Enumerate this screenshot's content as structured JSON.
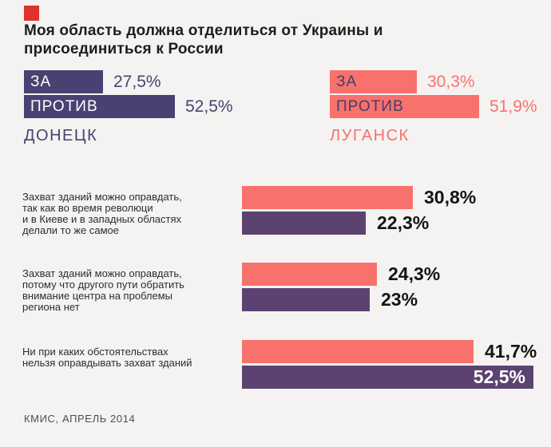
{
  "background": "#f4f3f1",
  "colors": {
    "brand_square": "#e0312d",
    "donetsk_purple": "#4a4173",
    "rows_purple": "#5b4270",
    "coral": "#f8716c",
    "value_black": "#141414",
    "footer_gray": "#4d4d4d"
  },
  "title_lines": [
    "Моя область должна отделиться от Украины и",
    "присоединиться к России"
  ],
  "donetsk": {
    "name": "ДОНЕЦК",
    "bars": [
      {
        "label": "ЗА",
        "value": 27.5,
        "value_label": "27,5%"
      },
      {
        "label": "ПРОТИВ",
        "value": 52.5,
        "value_label": "52,5%"
      }
    ]
  },
  "luhansk": {
    "name": "ЛУГАНСК",
    "bars": [
      {
        "label": "ЗА",
        "value": 30.3,
        "value_label": "30,3%"
      },
      {
        "label": "ПРОТИВ",
        "value": 51.9,
        "value_label": "51,9%"
      }
    ]
  },
  "questions": [
    {
      "lines": [
        "Захват зданий можно оправдать,",
        "так как во время революци",
        "и в Киеве и в западных областях",
        "делали то же самое"
      ],
      "coral": {
        "value": 30.8,
        "label": "30,8%"
      },
      "purple": {
        "value": 22.3,
        "label": "22,3%"
      }
    },
    {
      "lines": [
        "Захват зданий можно оправдать,",
        "потому что другого пути обратить",
        "внимание центра на проблемы",
        "региона нет"
      ],
      "coral": {
        "value": 24.3,
        "label": "24,3%"
      },
      "purple": {
        "value": 23,
        "label": "23%"
      }
    },
    {
      "lines": [
        "Ни при каких обстоятельствах",
        "нельзя оправдывать захват зданий"
      ],
      "coral": {
        "value": 41.7,
        "label": "41,7%"
      },
      "purple": {
        "value": 52.5,
        "label": "52,5%"
      }
    }
  ],
  "footer": "КМИС, АПРЕЛЬ 2014",
  "chart_data": [
    {
      "type": "bar",
      "title": "Моя область должна отделиться от Украины и присоединиться к России",
      "categories": [
        "ЗА",
        "ПРОТИВ"
      ],
      "series": [
        {
          "name": "ДОНЕЦК",
          "color": "#4a4173",
          "values": [
            27.5,
            52.5
          ]
        },
        {
          "name": "ЛУГАНСК",
          "color": "#f8716c",
          "values": [
            30.3,
            51.9
          ]
        }
      ],
      "unit": "%",
      "legend_position": "below-bars",
      "grid": false
    },
    {
      "type": "bar",
      "categories": [
        "Захват зданий можно оправдать, так как во время революци и в Киеве и в западных областях делали то же самое",
        "Захват зданий можно оправдать, потому что другого пути обратить внимание центра на проблемы региона нет",
        "Ни при каких обстоятельствах нельзя оправдывать захват зданий"
      ],
      "series": [
        {
          "name": "ЛУГАНСК",
          "color": "#f8716c",
          "values": [
            30.8,
            24.3,
            41.7
          ]
        },
        {
          "name": "ДОНЕЦК",
          "color": "#5b4270",
          "values": [
            22.3,
            23,
            52.5
          ]
        }
      ],
      "unit": "%",
      "orientation": "horizontal",
      "grid": false,
      "source": "КМИС, АПРЕЛЬ 2014"
    }
  ]
}
